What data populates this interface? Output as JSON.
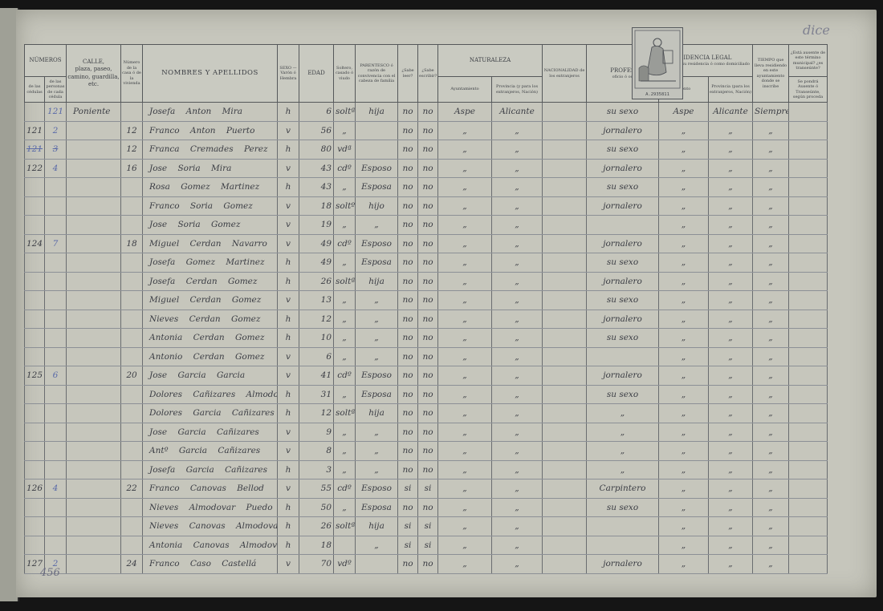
{
  "header": {
    "numeros": "NÚMEROS",
    "de_cedulas": "de las cédulas",
    "de_personas": "de las personas de cada cédula",
    "calle": "CALLE,",
    "calle_sub": "plaza, paseo, camino, guardilla, etc.",
    "numero_casa": "Número de la casa ó de la vivienda",
    "nombres": "NOMBRES Y APELLIDOS",
    "sexo": "SEXO — Varón ó Hembra",
    "edad": "EDAD",
    "estado": "Soltero, casado ó viudo",
    "parentesco": "PARENTESCO ó razón de convivencia con el cabeza de familia",
    "leer": "¿Sabe leer?",
    "escribir": "¿Sabe escribir?",
    "naturaleza": "NATURALEZA",
    "ayuntamiento": "Ayuntamiento",
    "provincia": "Provincia (y para los extranjeros, Nación)",
    "nacionalidad": "NACIONALIDAD de los extranjeros",
    "profesion": "PROFES",
    "profesion_sub": "oficio ó oc",
    "residencia": "SIDENCIA LEGAL",
    "residencia_sub": "que tiene su residencia ó como domiciliado",
    "res_ayuntamiento": "miento",
    "res_provincia": "Provincia (para los extranjeros, Nación)",
    "tiempo": "TIEMPO que lleva residiendo en este ayuntamiento donde se inscribe",
    "ausente": "¿Está ausente de este término municipal? ¿es transeúnte?",
    "ausente_sub": "Se pondrá Ausente ó Transeúnte, según proceda"
  },
  "stamp_number": "A.2935811",
  "corner_note": "dice",
  "footer_note": "456",
  "rows": [
    {
      "cedula": "",
      "persona": "121",
      "calle": "Poniente",
      "casa": "",
      "nombre": "Josefa Anton Mira",
      "sexo": "h",
      "edad": "6",
      "estado": "soltª",
      "parentesco": "hija",
      "leer": "no",
      "escribir": "no",
      "ayunt": "Aspe",
      "prov": "Alicante",
      "nac": "",
      "profesion": "su sexo",
      "r_ayunt": "Aspe",
      "r_prov": "Alicante",
      "tiempo": "Siempre",
      "ausente": ""
    },
    {
      "cedula": "121",
      "persona": "2",
      "calle": "",
      "casa": "12",
      "nombre": "Franco Anton Puerto",
      "sexo": "v",
      "edad": "56",
      "estado": "„",
      "parentesco": "",
      "leer": "no",
      "escribir": "no",
      "ayunt": "„",
      "prov": "„",
      "nac": "",
      "profesion": "jornalero",
      "r_ayunt": "„",
      "r_prov": "„",
      "tiempo": "„",
      "ausente": ""
    },
    {
      "cedula": "121",
      "persona": "3",
      "calle": "",
      "casa": "12",
      "nombre": "Franca Cremades Perez",
      "sexo": "h",
      "edad": "80",
      "estado": "vdª",
      "parentesco": "",
      "leer": "no",
      "escribir": "no",
      "ayunt": "„",
      "prov": "„",
      "nac": "",
      "profesion": "su sexo",
      "r_ayunt": "„",
      "r_prov": "„",
      "tiempo": "„",
      "ausente": ""
    },
    {
      "cedula": "122",
      "persona": "4",
      "calle": "",
      "casa": "16",
      "nombre": "Jose Soria Mira",
      "sexo": "v",
      "edad": "43",
      "estado": "cdº",
      "parentesco": "Esposo",
      "leer": "no",
      "escribir": "no",
      "ayunt": "„",
      "prov": "„",
      "nac": "",
      "profesion": "jornalero",
      "r_ayunt": "„",
      "r_prov": "„",
      "tiempo": "„",
      "ausente": ""
    },
    {
      "cedula": "",
      "persona": "",
      "calle": "",
      "casa": "",
      "nombre": "Rosa Gomez Martinez",
      "sexo": "h",
      "edad": "43",
      "estado": "„",
      "parentesco": "Esposa",
      "leer": "no",
      "escribir": "no",
      "ayunt": "„",
      "prov": "„",
      "nac": "",
      "profesion": "su sexo",
      "r_ayunt": "„",
      "r_prov": "„",
      "tiempo": "„",
      "ausente": ""
    },
    {
      "cedula": "",
      "persona": "",
      "calle": "",
      "casa": "",
      "nombre": "Franco Soria Gomez",
      "sexo": "v",
      "edad": "18",
      "estado": "soltº",
      "parentesco": "hijo",
      "leer": "no",
      "escribir": "no",
      "ayunt": "„",
      "prov": "„",
      "nac": "",
      "profesion": "jornalero",
      "r_ayunt": "„",
      "r_prov": "„",
      "tiempo": "„",
      "ausente": ""
    },
    {
      "cedula": "",
      "persona": "",
      "calle": "",
      "casa": "",
      "nombre": "Jose Soria Gomez",
      "sexo": "v",
      "edad": "19",
      "estado": "„",
      "parentesco": "„",
      "leer": "no",
      "escribir": "no",
      "ayunt": "„",
      "prov": "„",
      "nac": "",
      "profesion": "",
      "r_ayunt": "„",
      "r_prov": "„",
      "tiempo": "„",
      "ausente": ""
    },
    {
      "cedula": "124",
      "persona": "7",
      "calle": "",
      "casa": "18",
      "nombre": "Miguel Cerdan Navarro",
      "sexo": "v",
      "edad": "49",
      "estado": "cdº",
      "parentesco": "Esposo",
      "leer": "no",
      "escribir": "no",
      "ayunt": "„",
      "prov": "„",
      "nac": "",
      "profesion": "jornalero",
      "r_ayunt": "„",
      "r_prov": "„",
      "tiempo": "„",
      "ausente": ""
    },
    {
      "cedula": "",
      "persona": "",
      "calle": "",
      "casa": "",
      "nombre": "Josefa Gomez Martinez",
      "sexo": "h",
      "edad": "49",
      "estado": "„",
      "parentesco": "Esposa",
      "leer": "no",
      "escribir": "no",
      "ayunt": "„",
      "prov": "„",
      "nac": "",
      "profesion": "su sexo",
      "r_ayunt": "„",
      "r_prov": "„",
      "tiempo": "„",
      "ausente": ""
    },
    {
      "cedula": "",
      "persona": "",
      "calle": "",
      "casa": "",
      "nombre": "Josefa Cerdan Gomez",
      "sexo": "h",
      "edad": "26",
      "estado": "soltª",
      "parentesco": "hija",
      "leer": "no",
      "escribir": "no",
      "ayunt": "„",
      "prov": "„",
      "nac": "",
      "profesion": "jornalero",
      "r_ayunt": "„",
      "r_prov": "„",
      "tiempo": "„",
      "ausente": ""
    },
    {
      "cedula": "",
      "persona": "",
      "calle": "",
      "casa": "",
      "nombre": "Miguel Cerdan Gomez",
      "sexo": "v",
      "edad": "13",
      "estado": "„",
      "parentesco": "„",
      "leer": "no",
      "escribir": "no",
      "ayunt": "„",
      "prov": "„",
      "nac": "",
      "profesion": "su sexo",
      "r_ayunt": "„",
      "r_prov": "„",
      "tiempo": "„",
      "ausente": ""
    },
    {
      "cedula": "",
      "persona": "",
      "calle": "",
      "casa": "",
      "nombre": "Nieves Cerdan Gomez",
      "sexo": "h",
      "edad": "12",
      "estado": "„",
      "parentesco": "„",
      "leer": "no",
      "escribir": "no",
      "ayunt": "„",
      "prov": "„",
      "nac": "",
      "profesion": "jornalero",
      "r_ayunt": "„",
      "r_prov": "„",
      "tiempo": "„",
      "ausente": ""
    },
    {
      "cedula": "",
      "persona": "",
      "calle": "",
      "casa": "",
      "nombre": "Antonia Cerdan Gomez",
      "sexo": "h",
      "edad": "10",
      "estado": "„",
      "parentesco": "„",
      "leer": "no",
      "escribir": "no",
      "ayunt": "„",
      "prov": "„",
      "nac": "",
      "profesion": "su sexo",
      "r_ayunt": "„",
      "r_prov": "„",
      "tiempo": "„",
      "ausente": ""
    },
    {
      "cedula": "",
      "persona": "",
      "calle": "",
      "casa": "",
      "nombre": "Antonio Cerdan Gomez",
      "sexo": "v",
      "edad": "6",
      "estado": "„",
      "parentesco": "„",
      "leer": "no",
      "escribir": "no",
      "ayunt": "„",
      "prov": "„",
      "nac": "",
      "profesion": "",
      "r_ayunt": "„",
      "r_prov": "„",
      "tiempo": "„",
      "ausente": ""
    },
    {
      "cedula": "125",
      "persona": "6",
      "calle": "",
      "casa": "20",
      "nombre": "Jose Garcia Garcia",
      "sexo": "v",
      "edad": "41",
      "estado": "cdº",
      "parentesco": "Esposo",
      "leer": "no",
      "escribir": "no",
      "ayunt": "„",
      "prov": "„",
      "nac": "",
      "profesion": "jornalero",
      "r_ayunt": "„",
      "r_prov": "„",
      "tiempo": "„",
      "ausente": ""
    },
    {
      "cedula": "",
      "persona": "",
      "calle": "",
      "casa": "",
      "nombre": "Dolores Cañizares Almodovar",
      "sexo": "h",
      "edad": "31",
      "estado": "„",
      "parentesco": "Esposa",
      "leer": "no",
      "escribir": "no",
      "ayunt": "„",
      "prov": "„",
      "nac": "",
      "profesion": "su sexo",
      "r_ayunt": "„",
      "r_prov": "„",
      "tiempo": "„",
      "ausente": ""
    },
    {
      "cedula": "",
      "persona": "",
      "calle": "",
      "casa": "",
      "nombre": "Dolores Garcia Cañizares",
      "sexo": "h",
      "edad": "12",
      "estado": "soltª",
      "parentesco": "hija",
      "leer": "no",
      "escribir": "no",
      "ayunt": "„",
      "prov": "„",
      "nac": "",
      "profesion": "„",
      "r_ayunt": "„",
      "r_prov": "„",
      "tiempo": "„",
      "ausente": ""
    },
    {
      "cedula": "",
      "persona": "",
      "calle": "",
      "casa": "",
      "nombre": "Jose Garcia Cañizares",
      "sexo": "v",
      "edad": "9",
      "estado": "„",
      "parentesco": "„",
      "leer": "no",
      "escribir": "no",
      "ayunt": "„",
      "prov": "„",
      "nac": "",
      "profesion": "„",
      "r_ayunt": "„",
      "r_prov": "„",
      "tiempo": "„",
      "ausente": ""
    },
    {
      "cedula": "",
      "persona": "",
      "calle": "",
      "casa": "",
      "nombre": "Antº Garcia Cañizares",
      "sexo": "v",
      "edad": "8",
      "estado": "„",
      "parentesco": "„",
      "leer": "no",
      "escribir": "no",
      "ayunt": "„",
      "prov": "„",
      "nac": "",
      "profesion": "„",
      "r_ayunt": "„",
      "r_prov": "„",
      "tiempo": "„",
      "ausente": ""
    },
    {
      "cedula": "",
      "persona": "",
      "calle": "",
      "casa": "",
      "nombre": "Josefa Garcia Cañizares",
      "sexo": "h",
      "edad": "3",
      "estado": "„",
      "parentesco": "„",
      "leer": "no",
      "escribir": "no",
      "ayunt": "„",
      "prov": "„",
      "nac": "",
      "profesion": "„",
      "r_ayunt": "„",
      "r_prov": "„",
      "tiempo": "„",
      "ausente": ""
    },
    {
      "cedula": "126",
      "persona": "4",
      "calle": "",
      "casa": "22",
      "nombre": "Franco Canovas Bellod",
      "sexo": "v",
      "edad": "55",
      "estado": "cdº",
      "parentesco": "Esposo",
      "leer": "si",
      "escribir": "si",
      "ayunt": "„",
      "prov": "„",
      "nac": "",
      "profesion": "Carpintero",
      "r_ayunt": "„",
      "r_prov": "„",
      "tiempo": "„",
      "ausente": ""
    },
    {
      "cedula": "",
      "persona": "",
      "calle": "",
      "casa": "",
      "nombre": "Nieves Almodovar Puedo",
      "sexo": "h",
      "edad": "50",
      "estado": "„",
      "parentesco": "Esposa",
      "leer": "no",
      "escribir": "no",
      "ayunt": "„",
      "prov": "„",
      "nac": "",
      "profesion": "su sexo",
      "r_ayunt": "„",
      "r_prov": "„",
      "tiempo": "„",
      "ausente": ""
    },
    {
      "cedula": "",
      "persona": "",
      "calle": "",
      "casa": "",
      "nombre": "Nieves Canovas Almodovar",
      "sexo": "h",
      "edad": "26",
      "estado": "soltª",
      "parentesco": "hija",
      "leer": "si",
      "escribir": "si",
      "ayunt": "„",
      "prov": "„",
      "nac": "",
      "profesion": "",
      "r_ayunt": "„",
      "r_prov": "„",
      "tiempo": "„",
      "ausente": ""
    },
    {
      "cedula": "",
      "persona": "",
      "calle": "",
      "casa": "",
      "nombre": "Antonia Canovas Almodovar",
      "sexo": "h",
      "edad": "18",
      "estado": "",
      "parentesco": "„",
      "leer": "si",
      "escribir": "si",
      "ayunt": "„",
      "prov": "„",
      "nac": "",
      "profesion": "",
      "r_ayunt": "„",
      "r_prov": "„",
      "tiempo": "„",
      "ausente": ""
    },
    {
      "cedula": "127",
      "persona": "2",
      "calle": "",
      "casa": "24",
      "nombre": "Franco Caso Castellá",
      "sexo": "v",
      "edad": "70",
      "estado": "vdº",
      "parentesco": "",
      "leer": "no",
      "escribir": "no",
      "ayunt": "„",
      "prov": "„",
      "nac": "",
      "profesion": "jornalero",
      "r_ayunt": "„",
      "r_prov": "„",
      "tiempo": "„",
      "ausente": ""
    }
  ]
}
